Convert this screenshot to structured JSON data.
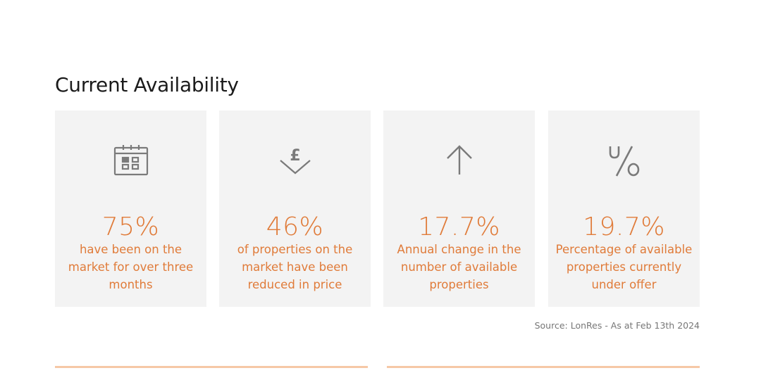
{
  "title": "Current Availability",
  "cards": [
    {
      "icon": "calendar-icon",
      "value": "75%",
      "description": "have been on the market for over three months"
    },
    {
      "icon": "pound-down-arrow-icon",
      "value": "46%",
      "description": "of properties on the market have been reduced in price"
    },
    {
      "icon": "up-arrow-icon",
      "value": "17.7%",
      "description": "Annual change in the number of available properties"
    },
    {
      "icon": "percent-u-icon",
      "value": "19.7%",
      "description": "Percentage of available properties currently under offer"
    }
  ],
  "source": "Source: LonRes - As at Feb 13th 2024",
  "colors": {
    "accent": "#e07b39",
    "card_bg": "#f3f3f3",
    "icon": "#7a7a7a",
    "rule": "#f6c8a6"
  }
}
